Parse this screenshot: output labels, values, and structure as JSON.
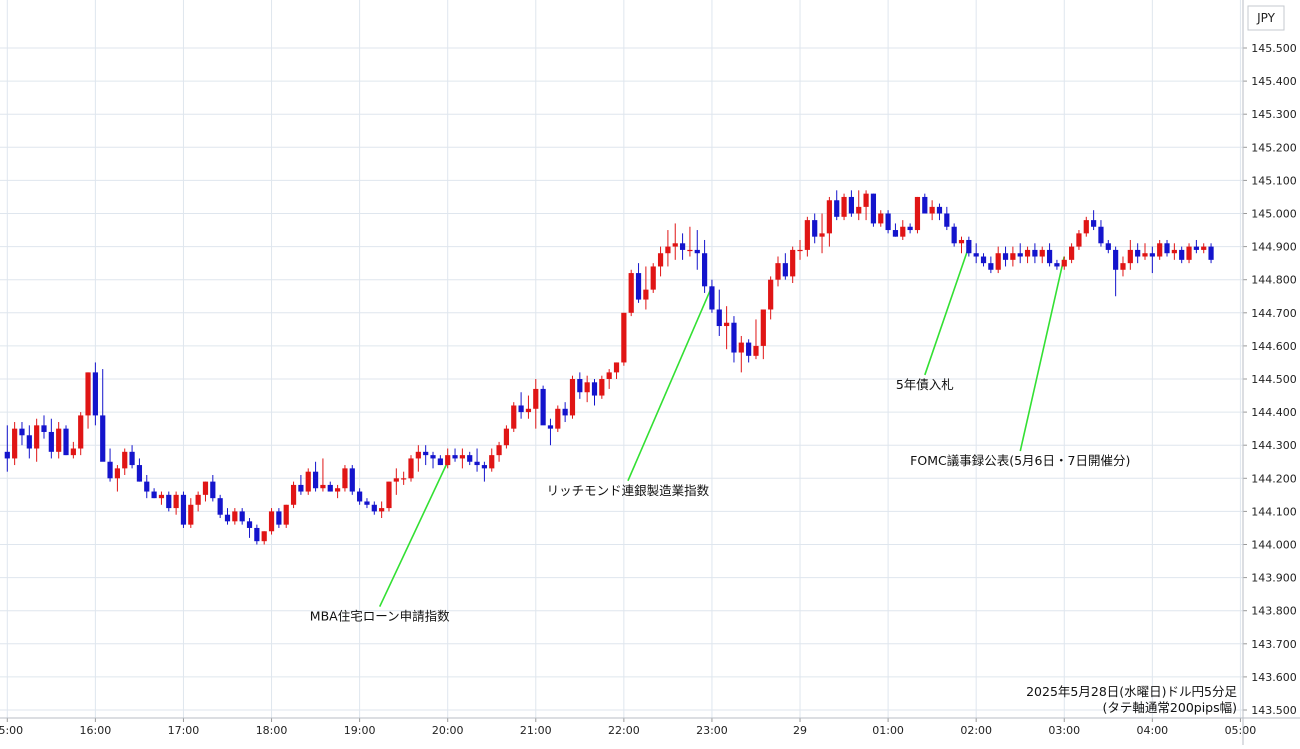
{
  "chart_data": {
    "type": "candlestick",
    "currency": "JPY",
    "ylim": [
      143.5,
      145.57
    ],
    "yticks": [
      "145.500",
      "145.400",
      "145.300",
      "145.200",
      "145.100",
      "145.000",
      "144.900",
      "144.800",
      "144.700",
      "144.600",
      "144.500",
      "144.400",
      "144.300",
      "144.200",
      "144.100",
      "144.000",
      "143.900",
      "143.800",
      "143.700",
      "143.600",
      "143.500"
    ],
    "xticks": [
      {
        "label": "15:00",
        "idx": 0
      },
      {
        "label": "16:00",
        "idx": 12
      },
      {
        "label": "17:00",
        "idx": 24
      },
      {
        "label": "18:00",
        "idx": 36
      },
      {
        "label": "19:00",
        "idx": 48
      },
      {
        "label": "20:00",
        "idx": 60
      },
      {
        "label": "21:00",
        "idx": 72
      },
      {
        "label": "22:00",
        "idx": 84
      },
      {
        "label": "23:00",
        "idx": 96
      },
      {
        "label": "29",
        "idx": 108
      },
      {
        "label": "01:00",
        "idx": 120
      },
      {
        "label": "02:00",
        "idx": 132
      },
      {
        "label": "03:00",
        "idx": 144
      },
      {
        "label": "04:00",
        "idx": 156
      },
      {
        "label": "05:00",
        "idx": 168
      }
    ],
    "colors": {
      "up": "#e01515",
      "down": "#1414cc",
      "grid": "#dfe6ee",
      "annotation_line": "#33e033"
    },
    "candles": [
      [
        144.28,
        144.36,
        144.22,
        144.26
      ],
      [
        144.26,
        144.37,
        144.24,
        144.35
      ],
      [
        144.35,
        144.37,
        144.3,
        144.33
      ],
      [
        144.33,
        144.36,
        144.26,
        144.29
      ],
      [
        144.29,
        144.38,
        144.25,
        144.36
      ],
      [
        144.36,
        144.39,
        144.32,
        144.34
      ],
      [
        144.34,
        144.38,
        144.26,
        144.28
      ],
      [
        144.28,
        144.37,
        144.26,
        144.35
      ],
      [
        144.35,
        144.36,
        144.27,
        144.27
      ],
      [
        144.27,
        144.31,
        144.26,
        144.29
      ],
      [
        144.29,
        144.4,
        144.27,
        144.39
      ],
      [
        144.39,
        144.52,
        144.35,
        144.52
      ],
      [
        144.52,
        144.55,
        144.36,
        144.39
      ],
      [
        144.39,
        144.53,
        144.26,
        144.25
      ],
      [
        144.25,
        144.29,
        144.19,
        144.2
      ],
      [
        144.2,
        144.24,
        144.16,
        144.23
      ],
      [
        144.23,
        144.29,
        144.21,
        144.28
      ],
      [
        144.28,
        144.3,
        144.23,
        144.24
      ],
      [
        144.24,
        144.26,
        144.19,
        144.19
      ],
      [
        144.19,
        144.21,
        144.14,
        144.16
      ],
      [
        144.16,
        144.17,
        144.14,
        144.14
      ],
      [
        144.14,
        144.16,
        144.12,
        144.15
      ],
      [
        144.15,
        144.16,
        144.1,
        144.11
      ],
      [
        144.11,
        144.16,
        144.09,
        144.15
      ],
      [
        144.15,
        144.16,
        144.05,
        144.06
      ],
      [
        144.06,
        144.14,
        144.05,
        144.12
      ],
      [
        144.12,
        144.16,
        144.1,
        144.15
      ],
      [
        144.15,
        144.19,
        144.13,
        144.19
      ],
      [
        144.19,
        144.21,
        144.13,
        144.14
      ],
      [
        144.14,
        144.15,
        144.08,
        144.09
      ],
      [
        144.09,
        144.11,
        144.06,
        144.07
      ],
      [
        144.07,
        144.11,
        144.06,
        144.1
      ],
      [
        144.1,
        144.11,
        144.06,
        144.07
      ],
      [
        144.07,
        144.08,
        144.02,
        144.05
      ],
      [
        144.05,
        144.06,
        144.0,
        144.01
      ],
      [
        144.01,
        144.04,
        144.0,
        144.04
      ],
      [
        144.04,
        144.11,
        144.03,
        144.1
      ],
      [
        144.1,
        144.11,
        144.05,
        144.06
      ],
      [
        144.06,
        144.12,
        144.05,
        144.12
      ],
      [
        144.12,
        144.19,
        144.11,
        144.18
      ],
      [
        144.18,
        144.21,
        144.15,
        144.16
      ],
      [
        144.16,
        144.23,
        144.15,
        144.22
      ],
      [
        144.22,
        144.25,
        144.16,
        144.17
      ],
      [
        144.17,
        144.26,
        144.16,
        144.18
      ],
      [
        144.18,
        144.19,
        144.16,
        144.16
      ],
      [
        144.16,
        144.18,
        144.14,
        144.17
      ],
      [
        144.17,
        144.24,
        144.16,
        144.23
      ],
      [
        144.23,
        144.24,
        144.15,
        144.16
      ],
      [
        144.16,
        144.17,
        144.12,
        144.13
      ],
      [
        144.13,
        144.14,
        144.11,
        144.12
      ],
      [
        144.12,
        144.13,
        144.09,
        144.1
      ],
      [
        144.1,
        144.13,
        144.08,
        144.11
      ],
      [
        144.11,
        144.19,
        144.1,
        144.19
      ],
      [
        144.19,
        144.23,
        144.15,
        144.2
      ],
      [
        144.2,
        144.22,
        144.18,
        144.2
      ],
      [
        144.2,
        144.27,
        144.19,
        144.26
      ],
      [
        144.26,
        144.3,
        144.22,
        144.28
      ],
      [
        144.28,
        144.3,
        144.24,
        144.27
      ],
      [
        144.27,
        144.28,
        144.23,
        144.26
      ],
      [
        144.26,
        144.27,
        144.24,
        144.24
      ],
      [
        144.24,
        144.29,
        144.23,
        144.27
      ],
      [
        144.27,
        144.29,
        144.25,
        144.26
      ],
      [
        144.26,
        144.29,
        144.23,
        144.27
      ],
      [
        144.27,
        144.28,
        144.24,
        144.25
      ],
      [
        144.25,
        144.29,
        144.22,
        144.24
      ],
      [
        144.24,
        144.25,
        144.19,
        144.23
      ],
      [
        144.23,
        144.29,
        144.22,
        144.27
      ],
      [
        144.27,
        144.31,
        144.25,
        144.3
      ],
      [
        144.3,
        144.36,
        144.29,
        144.35
      ],
      [
        144.35,
        144.43,
        144.34,
        144.42
      ],
      [
        144.42,
        144.46,
        144.38,
        144.4
      ],
      [
        144.4,
        144.45,
        144.38,
        144.41
      ],
      [
        144.41,
        144.5,
        144.35,
        144.47
      ],
      [
        144.47,
        144.48,
        144.37,
        144.36
      ],
      [
        144.36,
        144.38,
        144.3,
        144.35
      ],
      [
        144.35,
        144.42,
        144.34,
        144.41
      ],
      [
        144.41,
        144.43,
        144.37,
        144.39
      ],
      [
        144.39,
        144.51,
        144.38,
        144.5
      ],
      [
        144.5,
        144.52,
        144.44,
        144.46
      ],
      [
        144.46,
        144.51,
        144.43,
        144.49
      ],
      [
        144.49,
        144.5,
        144.42,
        144.45
      ],
      [
        144.45,
        144.51,
        144.44,
        144.5
      ],
      [
        144.5,
        144.53,
        144.47,
        144.52
      ],
      [
        144.52,
        144.55,
        144.5,
        144.55
      ],
      [
        144.55,
        144.7,
        144.54,
        144.7
      ],
      [
        144.7,
        144.83,
        144.69,
        144.82
      ],
      [
        144.82,
        144.85,
        144.73,
        144.74
      ],
      [
        144.74,
        144.84,
        144.71,
        144.77
      ],
      [
        144.77,
        144.85,
        144.76,
        144.84
      ],
      [
        144.84,
        144.9,
        144.81,
        144.88
      ],
      [
        144.88,
        144.95,
        144.84,
        144.9
      ],
      [
        144.9,
        144.97,
        144.86,
        144.91
      ],
      [
        144.91,
        144.94,
        144.86,
        144.89
      ],
      [
        144.89,
        144.96,
        144.87,
        144.89
      ],
      [
        144.89,
        144.95,
        144.83,
        144.88
      ],
      [
        144.88,
        144.92,
        144.76,
        144.78
      ],
      [
        144.78,
        144.8,
        144.7,
        144.71
      ],
      [
        144.71,
        144.77,
        144.63,
        144.66
      ],
      [
        144.66,
        144.72,
        144.59,
        144.67
      ],
      [
        144.67,
        144.69,
        144.55,
        144.58
      ],
      [
        144.58,
        144.63,
        144.52,
        144.61
      ],
      [
        144.61,
        144.62,
        144.55,
        144.57
      ],
      [
        144.57,
        144.68,
        144.56,
        144.6
      ],
      [
        144.6,
        144.71,
        144.56,
        144.71
      ],
      [
        144.71,
        144.81,
        144.68,
        144.8
      ],
      [
        144.8,
        144.87,
        144.78,
        144.85
      ],
      [
        144.85,
        144.88,
        144.8,
        144.81
      ],
      [
        144.81,
        144.9,
        144.79,
        144.89
      ],
      [
        144.89,
        144.92,
        144.86,
        144.89
      ],
      [
        144.89,
        144.99,
        144.87,
        144.98
      ],
      [
        144.98,
        145.0,
        144.91,
        144.93
      ],
      [
        144.93,
        145.0,
        144.88,
        144.94
      ],
      [
        144.94,
        145.05,
        144.9,
        145.04
      ],
      [
        145.04,
        145.07,
        144.98,
        144.99
      ],
      [
        144.99,
        145.06,
        144.98,
        145.05
      ],
      [
        145.05,
        145.07,
        144.99,
        145.0
      ],
      [
        145.0,
        145.07,
        144.98,
        145.02
      ],
      [
        145.02,
        145.07,
        144.98,
        145.06
      ],
      [
        145.06,
        145.06,
        144.96,
        144.97
      ],
      [
        144.97,
        145.01,
        144.96,
        145.0
      ],
      [
        145.0,
        145.01,
        144.94,
        144.95
      ],
      [
        144.95,
        144.97,
        144.93,
        144.93
      ],
      [
        144.93,
        144.98,
        144.92,
        144.96
      ],
      [
        144.96,
        144.97,
        144.94,
        144.95
      ],
      [
        144.95,
        145.05,
        144.94,
        145.05
      ],
      [
        145.05,
        145.06,
        145.0,
        145.0
      ],
      [
        145.0,
        145.04,
        144.98,
        145.02
      ],
      [
        145.02,
        145.03,
        144.98,
        145.0
      ],
      [
        145.0,
        145.02,
        144.95,
        144.96
      ],
      [
        144.96,
        144.97,
        144.9,
        144.91
      ],
      [
        144.91,
        144.93,
        144.88,
        144.92
      ],
      [
        144.92,
        144.93,
        144.87,
        144.88
      ],
      [
        144.88,
        144.91,
        144.85,
        144.87
      ],
      [
        144.87,
        144.88,
        144.84,
        144.85
      ],
      [
        144.85,
        144.87,
        144.82,
        144.83
      ],
      [
        144.83,
        144.9,
        144.82,
        144.88
      ],
      [
        144.88,
        144.9,
        144.84,
        144.86
      ],
      [
        144.86,
        144.9,
        144.84,
        144.88
      ],
      [
        144.88,
        144.91,
        144.85,
        144.87
      ],
      [
        144.87,
        144.9,
        144.85,
        144.89
      ],
      [
        144.89,
        144.91,
        144.85,
        144.87
      ],
      [
        144.87,
        144.9,
        144.85,
        144.89
      ],
      [
        144.89,
        144.91,
        144.84,
        144.85
      ],
      [
        144.85,
        144.86,
        144.83,
        144.84
      ],
      [
        144.84,
        144.87,
        144.83,
        144.86
      ],
      [
        144.86,
        144.91,
        144.85,
        144.9
      ],
      [
        144.9,
        144.95,
        144.89,
        144.94
      ],
      [
        144.94,
        144.99,
        144.93,
        144.98
      ],
      [
        144.98,
        145.01,
        144.95,
        144.96
      ],
      [
        144.96,
        144.98,
        144.9,
        144.91
      ],
      [
        144.91,
        144.92,
        144.88,
        144.89
      ],
      [
        144.89,
        144.9,
        144.75,
        144.83
      ],
      [
        144.83,
        144.87,
        144.81,
        144.85
      ],
      [
        144.85,
        144.92,
        144.83,
        144.89
      ],
      [
        144.89,
        144.91,
        144.85,
        144.87
      ],
      [
        144.87,
        144.91,
        144.86,
        144.88
      ],
      [
        144.88,
        144.9,
        144.82,
        144.87
      ],
      [
        144.87,
        144.92,
        144.86,
        144.91
      ],
      [
        144.91,
        144.92,
        144.87,
        144.88
      ],
      [
        144.88,
        144.91,
        144.86,
        144.89
      ],
      [
        144.89,
        144.9,
        144.85,
        144.86
      ],
      [
        144.86,
        144.91,
        144.85,
        144.9
      ],
      [
        144.9,
        144.92,
        144.88,
        144.89
      ],
      [
        144.89,
        144.91,
        144.88,
        144.9
      ],
      [
        144.9,
        144.91,
        144.85,
        144.86
      ]
    ],
    "annotations": [
      {
        "label": "MBA住宅ローン申請指数",
        "idx": 60,
        "price": 144.25,
        "label_y": 143.77
      },
      {
        "label": "リッチモンド連銀製造業指数",
        "idx": 96,
        "price": 144.78,
        "label_y": 144.15
      },
      {
        "label": "5年債入札",
        "idx": 131,
        "price": 144.9,
        "label_y": 144.47
      },
      {
        "label": "FOMC議事録公表(5月6日・7日開催分)",
        "idx": 144,
        "price": 144.87,
        "label_y": 144.24
      }
    ],
    "notes": [
      "2025年5月28日(水曜日)ドル円5分足",
      "(タテ軸通常200pips幅)"
    ]
  }
}
